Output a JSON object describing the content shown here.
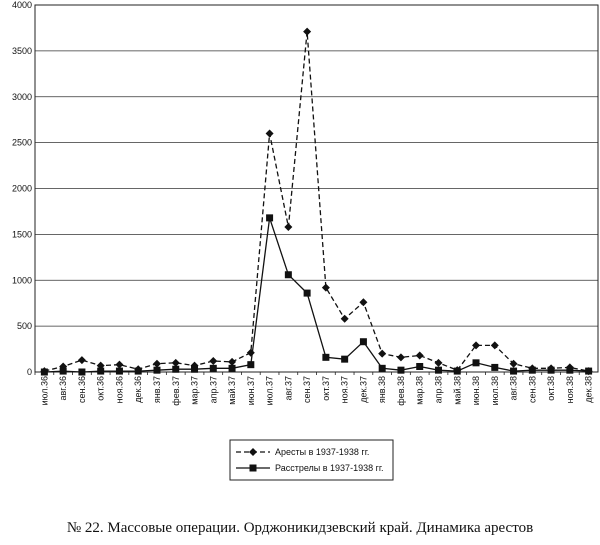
{
  "caption": "№ 22. Массовые операции. Орджоникидзевский край. Динамика арестов",
  "chart_data": {
    "type": "line",
    "title": "",
    "xlabel": "",
    "ylabel": "",
    "ylim": [
      0,
      4000
    ],
    "yticks": [
      "0",
      "500",
      "1000",
      "1500",
      "2000",
      "2500",
      "3000",
      "3500",
      "4000"
    ],
    "grid": "horizontal",
    "legend_position": "bottom-left",
    "categories": [
      "июл.36",
      "авг.36",
      "сен.36",
      "окт.36",
      "ноя.36",
      "дек.36",
      "янв.37",
      "фев.37",
      "мар.37",
      "апр.37",
      "май.37",
      "июн.37",
      "июл.37",
      "авг.37",
      "сен.37",
      "окт.37",
      "ноя.37",
      "дек.37",
      "янв.38",
      "фев.38",
      "мар.38",
      "апр.38",
      "май.38",
      "июн.38",
      "июл.38",
      "авг.38",
      "сен.38",
      "окт.38",
      "ноя.38",
      "дек.38"
    ],
    "series": [
      {
        "name": "Аресты в 1937-1938 гг.",
        "style": "dashed",
        "marker": "diamond",
        "values": [
          10,
          60,
          130,
          70,
          80,
          30,
          90,
          100,
          70,
          120,
          110,
          210,
          2600,
          1580,
          3710,
          920,
          580,
          760,
          200,
          160,
          180,
          100,
          20,
          290,
          290,
          90,
          40,
          40,
          50,
          10
        ]
      },
      {
        "name": "Расстрелы в 1937-1938 гг.",
        "style": "solid",
        "marker": "square",
        "values": [
          0,
          10,
          0,
          10,
          10,
          10,
          20,
          30,
          30,
          40,
          40,
          80,
          1680,
          1060,
          860,
          160,
          140,
          330,
          40,
          20,
          60,
          20,
          10,
          100,
          50,
          10,
          20,
          20,
          20,
          10
        ]
      }
    ]
  }
}
